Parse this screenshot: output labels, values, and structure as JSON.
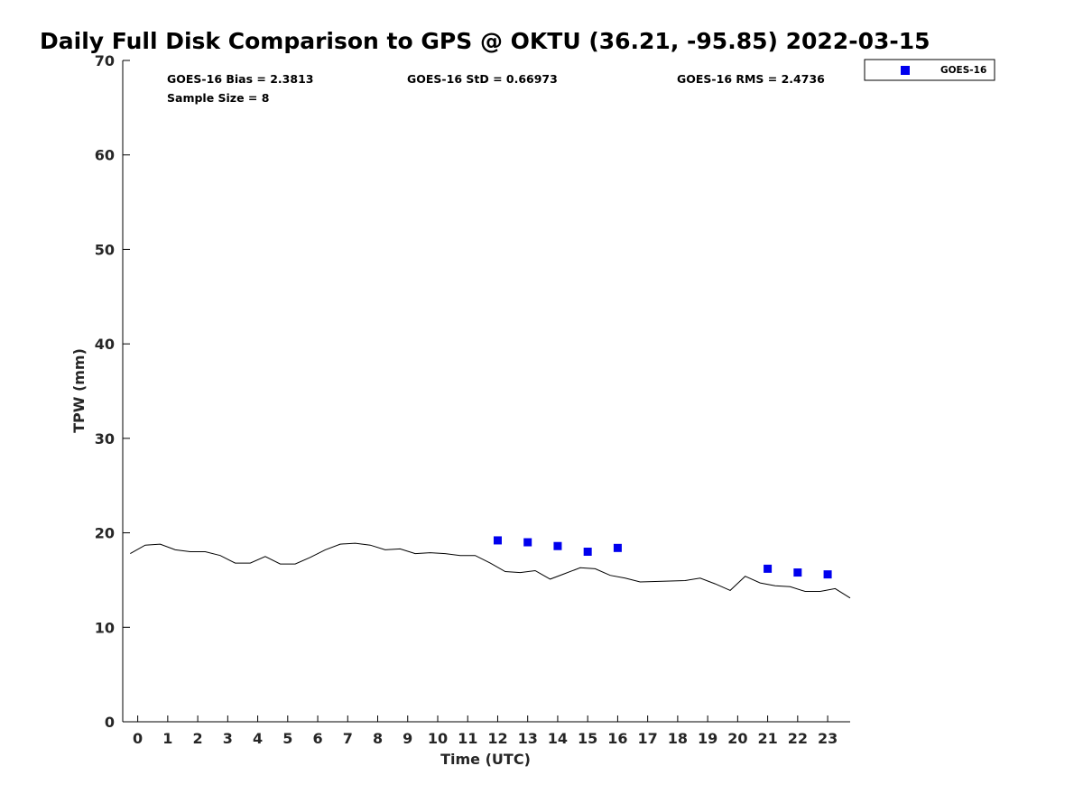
{
  "chart_data": {
    "type": "scatter",
    "title": "Daily Full Disk Comparison to GPS @ OKTU (36.21, -95.85) 2022-03-15",
    "xlabel": "Time (UTC)",
    "ylabel": "TPW (mm)",
    "xlim": [
      -0.5,
      23.75
    ],
    "ylim": [
      0,
      70
    ],
    "x_ticks": [
      0,
      1,
      2,
      3,
      4,
      5,
      6,
      7,
      8,
      9,
      10,
      11,
      12,
      13,
      14,
      15,
      16,
      17,
      18,
      19,
      20,
      21,
      22,
      23
    ],
    "y_ticks": [
      0,
      10,
      20,
      30,
      40,
      50,
      60,
      70
    ],
    "grid": false,
    "legend_position": "top-right, outside axes",
    "stats": {
      "bias": "GOES-16 Bias = 2.3813",
      "std": "GOES-16 StD = 0.66973",
      "rms": "GOES-16 RMS = 2.4736",
      "sample_size": "Sample Size = 8"
    },
    "series": [
      {
        "kind": "line",
        "color": "#000000",
        "x": [
          -0.25,
          0.25,
          0.75,
          1.25,
          1.75,
          2.25,
          2.75,
          3.25,
          3.75,
          4.25,
          4.75,
          5.25,
          5.75,
          6.25,
          6.75,
          7.25,
          7.75,
          8.25,
          8.75,
          9.25,
          9.75,
          10.25,
          10.75,
          11.25,
          11.75,
          12.25,
          12.75,
          13.25,
          13.75,
          14.25,
          14.75,
          15.25,
          15.75,
          16.25,
          16.75,
          17.25,
          17.75,
          18.25,
          18.75,
          19.25,
          19.75,
          20.25,
          20.75,
          21.25,
          21.75,
          22.25,
          22.75,
          23.25,
          23.75
        ],
        "y": [
          17.8,
          18.7,
          18.8,
          18.2,
          18.0,
          18.0,
          17.6,
          16.8,
          16.8,
          17.5,
          16.7,
          16.7,
          17.4,
          18.2,
          18.8,
          18.9,
          18.7,
          18.2,
          18.3,
          17.8,
          17.9,
          17.8,
          17.6,
          17.6,
          16.8,
          15.9,
          15.8,
          16.0,
          15.1,
          15.7,
          16.3,
          16.2,
          15.5,
          15.2,
          14.8,
          14.85,
          14.9,
          14.95,
          15.2,
          14.6,
          13.9,
          15.4,
          14.7,
          14.4,
          14.3,
          13.8,
          13.8,
          14.1,
          13.1
        ]
      },
      {
        "name": "GOES-16",
        "kind": "scatter",
        "marker": "square",
        "color": "#0000ee",
        "x": [
          12,
          13,
          14,
          15,
          16,
          21,
          22,
          23
        ],
        "y": [
          19.2,
          19.0,
          18.6,
          18.0,
          18.4,
          16.2,
          15.8,
          15.6
        ]
      }
    ]
  }
}
